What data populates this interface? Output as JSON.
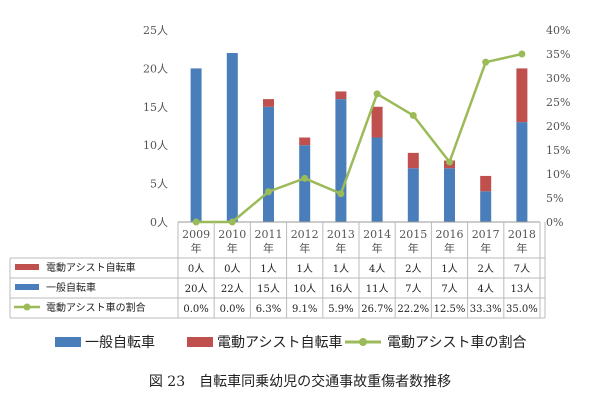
{
  "chart_data": {
    "type": "bar",
    "stacked": true,
    "categories": [
      "2009年",
      "2010年",
      "2011年",
      "2012年",
      "2013年",
      "2014年",
      "2015年",
      "2016年",
      "2017年",
      "2018年"
    ],
    "series": [
      {
        "name": "一般自転車",
        "kind": "bar",
        "axis": "left",
        "color": "#4a7ebb",
        "values": [
          20,
          22,
          15,
          10,
          16,
          11,
          7,
          7,
          4,
          13
        ],
        "labels": [
          "20人",
          "22人",
          "15人",
          "10人",
          "16人",
          "11人",
          "7人",
          "7人",
          "4人",
          "13人"
        ]
      },
      {
        "name": "電動アシスト自転車",
        "kind": "bar",
        "axis": "left",
        "color": "#c0504d",
        "values": [
          0,
          0,
          1,
          1,
          1,
          4,
          2,
          1,
          2,
          7
        ],
        "labels": [
          "0人",
          "0人",
          "1人",
          "1人",
          "1人",
          "4人",
          "2人",
          "1人",
          "2人",
          "7人"
        ]
      },
      {
        "name": "電動アシスト車の割合",
        "kind": "line",
        "axis": "right",
        "color": "#9bbb59",
        "values": [
          0.0,
          0.0,
          6.3,
          9.1,
          5.9,
          26.7,
          22.2,
          12.5,
          33.3,
          35.0
        ],
        "labels": [
          "0.0%",
          "0.0%",
          "6.3%",
          "9.1%",
          "5.9%",
          "26.7%",
          "22.2%",
          "12.5%",
          "33.3%",
          "35.0%"
        ]
      }
    ],
    "y_left": {
      "range": [
        0,
        25
      ],
      "ticks": [
        "0人",
        "5人",
        "10人",
        "15人",
        "20人",
        "25人"
      ]
    },
    "y_right": {
      "range": [
        0,
        40
      ],
      "ticks": [
        "0%",
        "5%",
        "10%",
        "15%",
        "20%",
        "25%",
        "30%",
        "35%",
        "40%"
      ]
    },
    "grid": false,
    "legend_position": "bottom",
    "caption": "図 23　自転車同乗幼児の交通事故重傷者数推移"
  }
}
